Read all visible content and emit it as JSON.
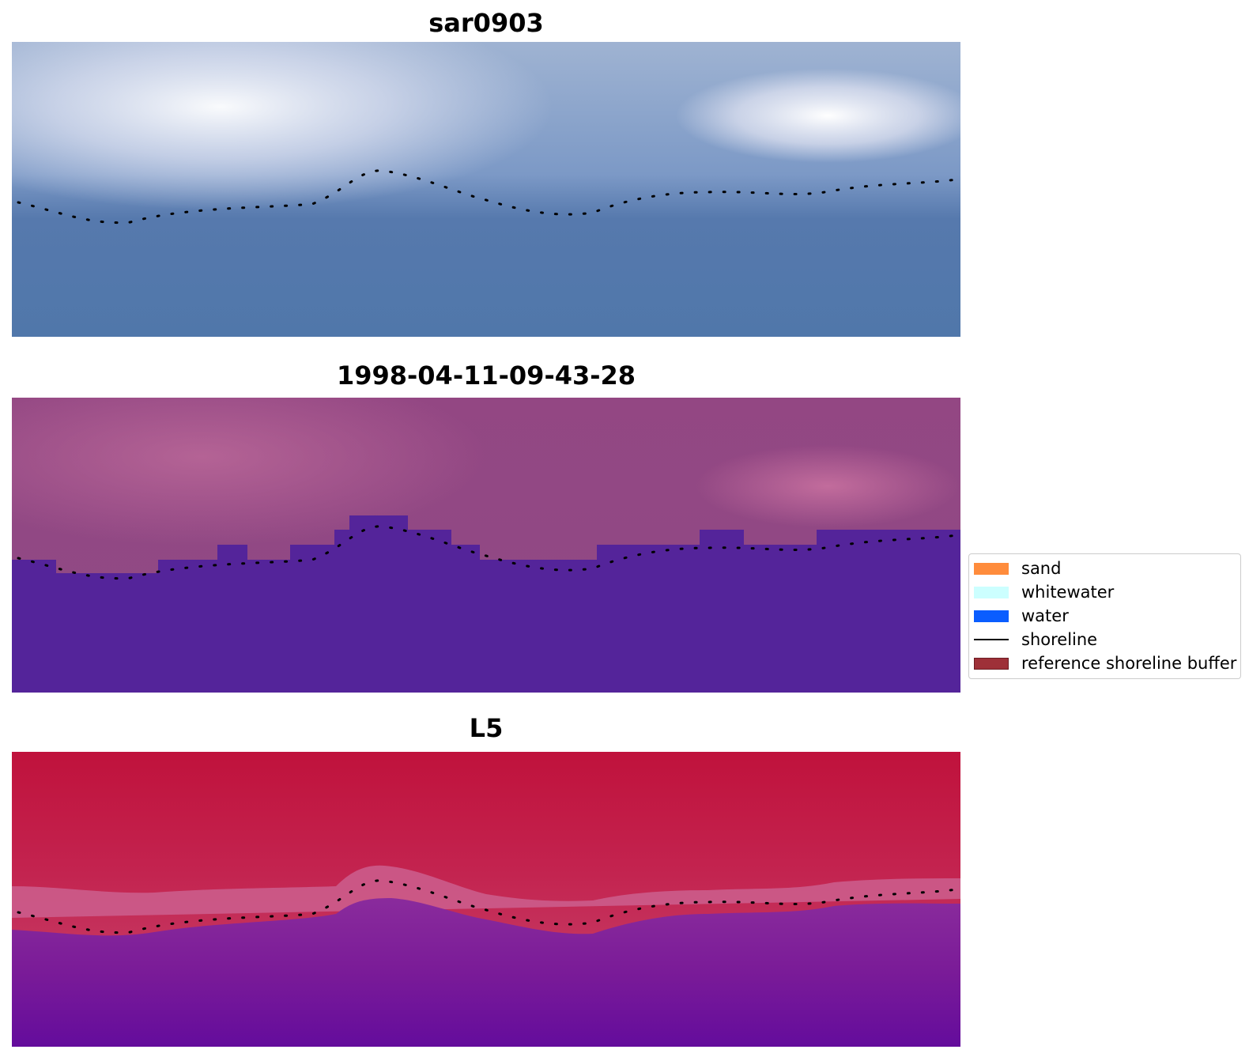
{
  "panels": [
    {
      "title": "sar0903"
    },
    {
      "title": "1998-04-11-09-43-28"
    },
    {
      "title": "L5"
    }
  ],
  "legend": {
    "items": [
      {
        "label": "sand",
        "color": "#ff8c3c",
        "kind": "patch"
      },
      {
        "label": "whitewater",
        "color": "#ccffff",
        "kind": "patch"
      },
      {
        "label": "water",
        "color": "#0a5dff",
        "kind": "patch"
      },
      {
        "label": "shoreline",
        "color": "#000000",
        "kind": "line"
      },
      {
        "label": "reference shoreline buffer",
        "color": "#9e3038",
        "kind": "patch"
      }
    ]
  }
}
